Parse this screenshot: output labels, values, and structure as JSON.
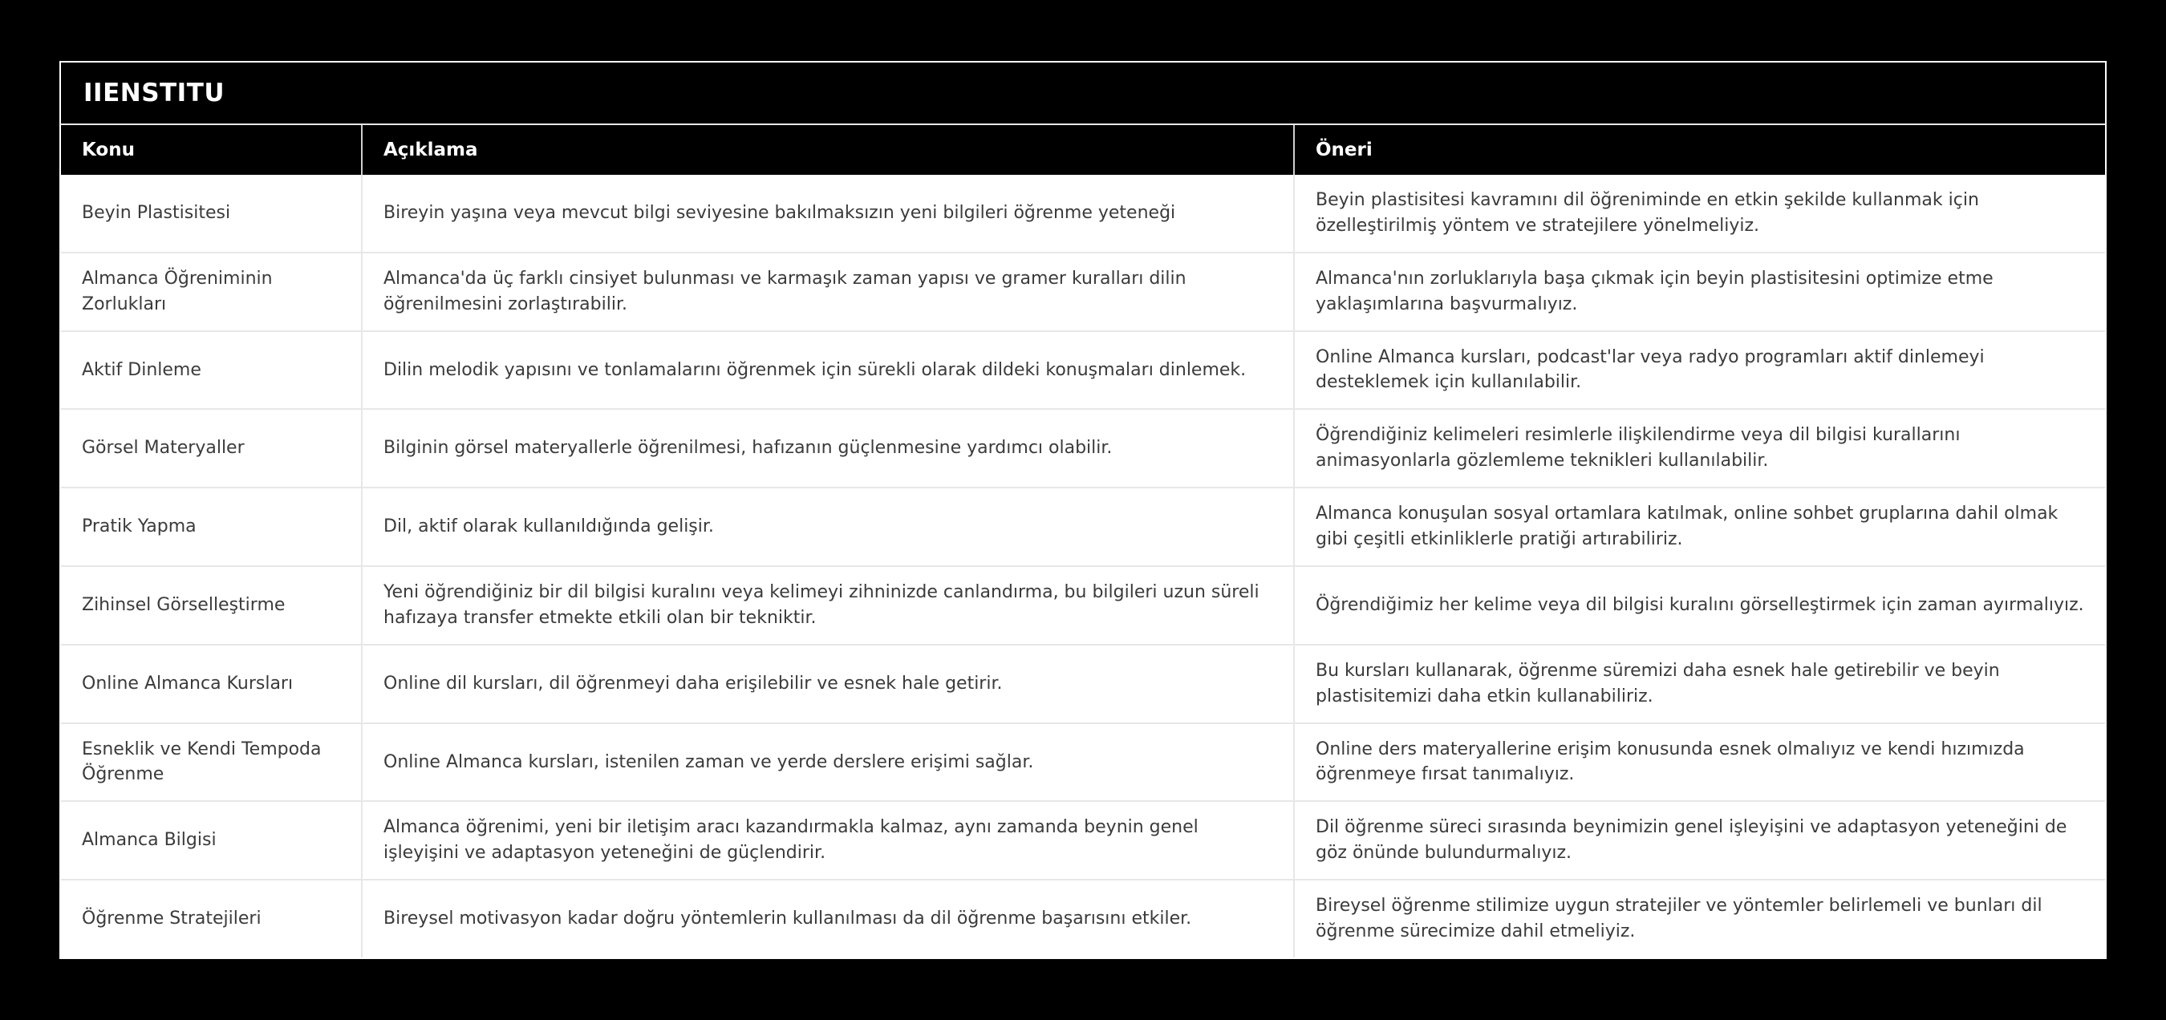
{
  "colors": {
    "page_background": "#000000",
    "header_background": "#000000",
    "header_text": "#ffffff",
    "body_background": "#ffffff",
    "body_text": "#3b3b3b",
    "outer_border": "#fdfdfd",
    "inner_border": "#e7e7e7"
  },
  "table": {
    "title": "IIENSTITU",
    "columns": {
      "konu": "Konu",
      "aciklama": "Açıklama",
      "oneri": "Öneri"
    },
    "rows": [
      {
        "konu": "Beyin Plastisitesi",
        "aciklama": "Bireyin yaşına veya mevcut bilgi seviyesine bakılmaksızın yeni bilgileri öğrenme yeteneği",
        "oneri": "Beyin plastisitesi kavramını dil öğreniminde en etkin şekilde kullanmak için özelleştirilmiş yöntem ve stratejilere yönelmeliyiz."
      },
      {
        "konu": "Almanca Öğreniminin Zorlukları",
        "aciklama": "Almanca'da üç farklı cinsiyet bulunması ve karmaşık zaman yapısı ve gramer kuralları dilin öğrenilmesini zorlaştırabilir.",
        "oneri": "Almanca'nın zorluklarıyla başa çıkmak için beyin plastisitesini optimize etme yaklaşımlarına başvurmalıyız."
      },
      {
        "konu": "Aktif Dinleme",
        "aciklama": "Dilin melodik yapısını ve tonlamalarını öğrenmek için sürekli olarak dildeki konuşmaları dinlemek.",
        "oneri": "Online Almanca kursları, podcast'lar veya radyo programları aktif dinlemeyi desteklemek için kullanılabilir."
      },
      {
        "konu": "Görsel Materyaller",
        "aciklama": "Bilginin görsel materyallerle öğrenilmesi, hafızanın güçlenmesine yardımcı olabilir.",
        "oneri": "Öğrendiğiniz kelimeleri resimlerle ilişkilendirme veya dil bilgisi kurallarını animasyonlarla gözlemleme teknikleri kullanılabilir."
      },
      {
        "konu": "Pratik Yapma",
        "aciklama": "Dil, aktif olarak kullanıldığında gelişir.",
        "oneri": "Almanca konuşulan sosyal ortamlara katılmak, online sohbet gruplarına dahil olmak gibi çeşitli etkinliklerle pratiği artırabiliriz."
      },
      {
        "konu": "Zihinsel Görselleştirme",
        "aciklama": "Yeni öğrendiğiniz bir dil bilgisi kuralını veya kelimeyi zihninizde canlandırma, bu bilgileri uzun süreli hafızaya transfer etmekte etkili olan bir tekniktir.",
        "oneri": "Öğrendiğimiz her kelime veya dil bilgisi kuralını görselleştirmek için zaman ayırmalıyız."
      },
      {
        "konu": "Online Almanca Kursları",
        "aciklama": "Online dil kursları, dil öğrenmeyi daha erişilebilir ve esnek hale getirir.",
        "oneri": "Bu kursları kullanarak, öğrenme süremizi daha esnek hale getirebilir ve beyin plastisitemizi daha etkin kullanabiliriz."
      },
      {
        "konu": "Esneklik ve Kendi Tempoda Öğrenme",
        "aciklama": "Online Almanca kursları, istenilen zaman ve yerde derslere erişimi sağlar.",
        "oneri": "Online ders materyallerine erişim konusunda esnek olmalıyız ve kendi hızımızda öğrenmeye fırsat tanımalıyız."
      },
      {
        "konu": "Almanca Bilgisi",
        "aciklama": "Almanca öğrenimi, yeni bir iletişim aracı kazandırmakla kalmaz, aynı zamanda beynin genel işleyişini ve adaptasyon yeteneğini de güçlendirir.",
        "oneri": "Dil öğrenme süreci sırasında beynimizin genel işleyişini ve adaptasyon yeteneğini de göz önünde bulundurmalıyız."
      },
      {
        "konu": "Öğrenme Stratejileri",
        "aciklama": "Bireysel motivasyon kadar doğru yöntemlerin kullanılması da dil öğrenme başarısını etkiler.",
        "oneri": "Bireysel öğrenme stilimize uygun stratejiler ve yöntemler belirlemeli ve bunları dil öğrenme sürecimize dahil etmeliyiz."
      }
    ]
  }
}
